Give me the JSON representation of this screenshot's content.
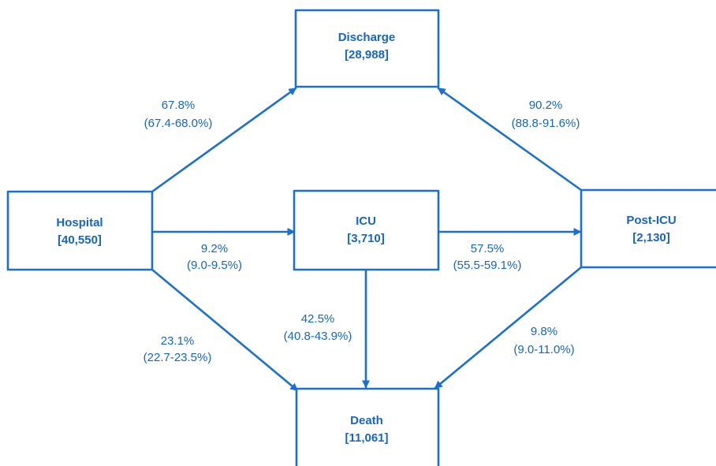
{
  "colors": {
    "stroke": "#1a6fd0",
    "text": "#1565c8",
    "background": "#ffffff"
  },
  "nodes": {
    "discharge": {
      "title": "Discharge",
      "count": "[28,988]"
    },
    "hospital": {
      "title": "Hospital",
      "count": "[40,550]"
    },
    "icu": {
      "title": "ICU",
      "count": "[3,710]"
    },
    "post_icu": {
      "title": "Post-ICU",
      "count": "[2,130]"
    },
    "death": {
      "title": "Death",
      "count": "[11,061]"
    }
  },
  "edges": {
    "hospital_to_discharge": {
      "pct": "67.8%",
      "ci": "(67.4-68.0%)"
    },
    "hospital_to_icu": {
      "pct": "9.2%",
      "ci": "(9.0-9.5%)"
    },
    "hospital_to_death": {
      "pct": "23.1%",
      "ci": "(22.7-23.5%)"
    },
    "icu_to_post_icu": {
      "pct": "57.5%",
      "ci": "(55.5-59.1%)"
    },
    "icu_to_death": {
      "pct": "42.5%",
      "ci": "(40.8-43.9%)"
    },
    "post_icu_to_discharge": {
      "pct": "90.2%",
      "ci": "(88.8-91.6%)"
    },
    "post_icu_to_death": {
      "pct": "9.8%",
      "ci": "(9.0-11.0%)"
    }
  }
}
